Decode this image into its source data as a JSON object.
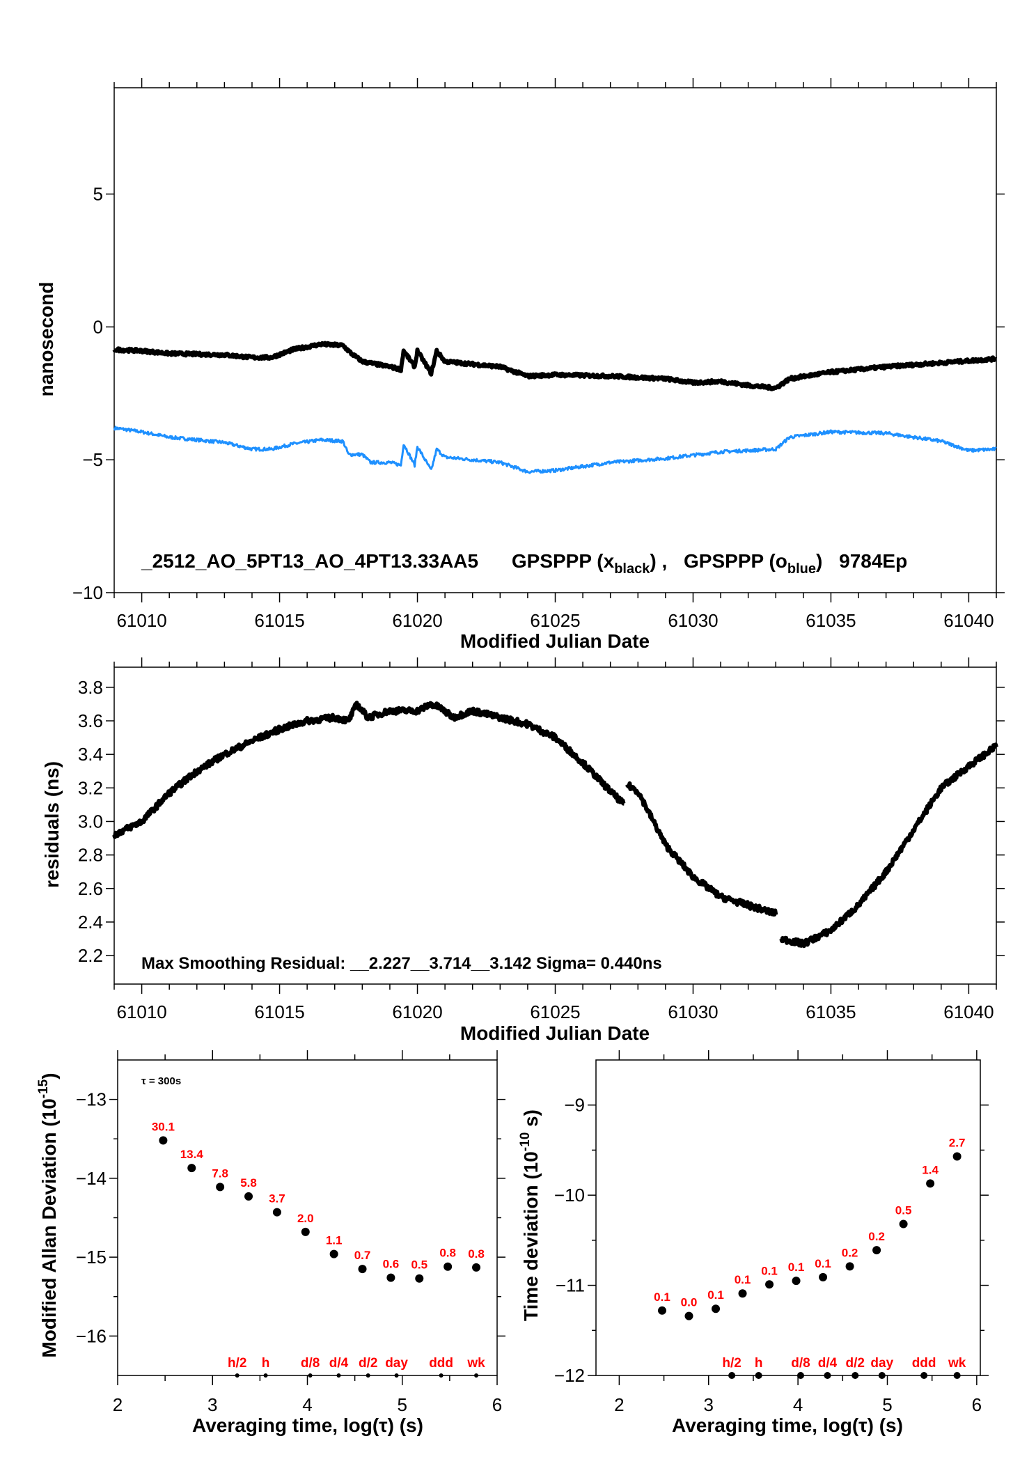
{
  "chart_data": [
    {
      "type": "line",
      "xlabel": "Modified Julian Date",
      "ylabel": "nanosecond",
      "xlim": [
        61009,
        61041
      ],
      "ylim": [
        -10,
        9
      ],
      "xticks": [
        61010,
        61015,
        61020,
        61025,
        61030,
        61035,
        61040
      ],
      "yticks": [
        5,
        0,
        -5,
        -10
      ],
      "ytick_labels": [
        "5",
        "0",
        "−5",
        "−10"
      ],
      "annotation": {
        "id": "_2512_AO_5PT13_AO_4PT13.33AA5",
        "s1_prefix": "GPSPPP (x",
        "s1_sub": "black",
        "s1_suffix": ") ,",
        "s2_prefix": "GPSPPP (o",
        "s2_sub": "blue",
        "s2_suffix": ")",
        "tag": "9784Ep"
      },
      "series": [
        {
          "color": "#1e90ff",
          "x": [
            61009,
            61010,
            61011,
            61013,
            61014,
            61014.7,
            61015.5,
            61016.5,
            61017.3,
            61017.5,
            61018,
            61018.3,
            61019,
            61019.4,
            61019.5,
            61019.9,
            61020,
            61020.5,
            61020.7,
            61021,
            61022,
            61023,
            61024,
            61025,
            61027,
            61029,
            61031,
            61033,
            61033.5,
            61035,
            61037,
            61039,
            61040,
            61041
          ],
          "y": [
            -3.8,
            -3.95,
            -4.15,
            -4.35,
            -4.6,
            -4.6,
            -4.4,
            -4.25,
            -4.3,
            -4.8,
            -4.8,
            -5.1,
            -5.1,
            -5.2,
            -4.4,
            -5.2,
            -4.5,
            -5.4,
            -4.6,
            -4.9,
            -5.0,
            -5.1,
            -5.45,
            -5.4,
            -5.1,
            -4.95,
            -4.7,
            -4.6,
            -4.15,
            -3.95,
            -4.0,
            -4.3,
            -4.65,
            -4.6
          ]
        },
        {
          "color": "#000000",
          "x": [
            61009,
            61010,
            61011,
            61013,
            61014,
            61014.7,
            61015.5,
            61016.5,
            61017.3,
            61017.6,
            61018,
            61019,
            61019.4,
            61019.5,
            61019.9,
            61020,
            61020.5,
            61020.7,
            61021,
            61022,
            61023,
            61024,
            61025,
            61027,
            61029,
            61030,
            61031,
            61032,
            61033,
            61033.5,
            61035,
            61037,
            61039,
            61041
          ],
          "y": [
            -0.85,
            -0.9,
            -1.0,
            -1.05,
            -1.15,
            -1.15,
            -0.85,
            -0.65,
            -0.7,
            -1.0,
            -1.3,
            -1.5,
            -1.6,
            -0.9,
            -1.5,
            -0.9,
            -1.75,
            -0.9,
            -1.3,
            -1.4,
            -1.5,
            -1.85,
            -1.8,
            -1.85,
            -1.95,
            -2.1,
            -2.05,
            -2.2,
            -2.3,
            -1.95,
            -1.7,
            -1.5,
            -1.35,
            -1.2
          ]
        }
      ]
    },
    {
      "type": "scatter",
      "xlabel": "Modified Julian Date",
      "ylabel": "residuals (ns)",
      "xlim": [
        61009,
        61041
      ],
      "ylim": [
        2.03,
        3.92
      ],
      "xticks": [
        61010,
        61015,
        61020,
        61025,
        61030,
        61035,
        61040
      ],
      "yticks": [
        2.2,
        2.4,
        2.6,
        2.8,
        3.0,
        3.2,
        3.4,
        3.6,
        3.8
      ],
      "ytick_labels": [
        "2.2",
        "2.4",
        "2.6",
        "2.8",
        "3.0",
        "3.2",
        "3.4",
        "3.6",
        "3.8"
      ],
      "annotation": "Max Smoothing Residual: __2.227__3.714__3.142  Sigma= 0.440ns",
      "series": [
        {
          "color": "#000000",
          "x": [
            61009,
            61010,
            61011,
            61012,
            61013,
            61014,
            61015,
            61016,
            61017,
            61017.5,
            61017.8,
            61018.2,
            61019,
            61020,
            61020.5,
            61020.8,
            61021.3,
            61022,
            61023,
            61024,
            61025,
            61026,
            61027,
            61027.5,
            null,
            61027.6,
            61028,
            61029,
            61030,
            61031,
            61032,
            61033,
            null,
            61033.2,
            61034,
            61035,
            61036,
            61037,
            61038,
            61039,
            61040,
            61041
          ],
          "y": [
            2.92,
            3.0,
            3.17,
            3.3,
            3.4,
            3.48,
            3.55,
            3.6,
            3.62,
            3.6,
            3.7,
            3.62,
            3.66,
            3.66,
            3.7,
            3.68,
            3.62,
            3.66,
            3.62,
            3.58,
            3.5,
            3.35,
            3.18,
            3.1,
            null,
            3.22,
            3.18,
            2.86,
            2.67,
            2.55,
            2.5,
            2.45,
            null,
            2.3,
            2.27,
            2.35,
            2.5,
            2.7,
            2.95,
            3.2,
            3.33,
            3.45
          ]
        }
      ]
    },
    {
      "type": "scatter",
      "xlabel": "Averaging time, log(τ) (s)",
      "ylabel": "Modified Allan Deviation (10⁻¹⁵)",
      "ylabel_main": "Modified Allan Deviation (10",
      "ylabel_sup": "-15",
      "ylabel_end": ")",
      "xlim": [
        2,
        6
      ],
      "ylim": [
        -16.5,
        -12.5
      ],
      "xticks": [
        2,
        3,
        4,
        5,
        6
      ],
      "yticks": [
        -13,
        -14,
        -15,
        -16
      ],
      "ytick_labels": [
        "−13",
        "−14",
        "−15",
        "−16"
      ],
      "note": "τ = 300s",
      "x": [
        2.48,
        2.78,
        3.08,
        3.38,
        3.68,
        3.98,
        4.28,
        4.58,
        4.88,
        5.18,
        5.48,
        5.78
      ],
      "y": [
        -13.52,
        -13.87,
        -14.11,
        -14.23,
        -14.43,
        -14.68,
        -14.96,
        -15.15,
        -15.26,
        -15.27,
        -15.12,
        -15.13
      ],
      "point_labels": [
        "30.1",
        "13.4",
        "7.8",
        "5.8",
        "3.7",
        "2.0",
        "1.1",
        "0.7",
        "0.6",
        "0.5",
        "0.8",
        "0.8"
      ],
      "markers": [
        {
          "x": 3.26,
          "label": "h/2"
        },
        {
          "x": 3.56,
          "label": "h"
        },
        {
          "x": 4.03,
          "label": "d/8"
        },
        {
          "x": 4.33,
          "label": "d/4"
        },
        {
          "x": 4.64,
          "label": "d/2"
        },
        {
          "x": 4.94,
          "label": "day"
        },
        {
          "x": 5.41,
          "label": "ddd"
        },
        {
          "x": 5.78,
          "label": "wk"
        }
      ],
      "label_color": "#ff0000"
    },
    {
      "type": "scatter",
      "xlabel": "Averaging time, log(τ) (s)",
      "ylabel": "Time deviation (10⁻¹⁰ s)",
      "ylabel_main": "Time deviation (10",
      "ylabel_sup": "-10",
      "ylabel_end": " s)",
      "xlim": [
        1.74,
        6.04
      ],
      "ylim": [
        -12,
        -8.5
      ],
      "xticks": [
        2,
        3,
        4,
        5,
        6
      ],
      "yticks": [
        -9,
        -10,
        -11,
        -12
      ],
      "ytick_labels": [
        "−9",
        "−10",
        "−11",
        "−12"
      ],
      "x": [
        2.48,
        2.78,
        3.08,
        3.38,
        3.68,
        3.98,
        4.28,
        4.58,
        4.88,
        5.18,
        5.48,
        5.78
      ],
      "y": [
        -11.28,
        -11.34,
        -11.26,
        -11.09,
        -10.99,
        -10.95,
        -10.91,
        -10.79,
        -10.61,
        -10.32,
        -9.87,
        -9.57
      ],
      "point_labels": [
        "0.1",
        "0.0",
        "0.1",
        "0.1",
        "0.1",
        "0.1",
        "0.1",
        "0.2",
        "0.2",
        "0.5",
        "1.4",
        "2.7"
      ],
      "markers": [
        {
          "x": 3.26,
          "label": "h/2"
        },
        {
          "x": 3.56,
          "label": "h"
        },
        {
          "x": 4.03,
          "label": "d/8"
        },
        {
          "x": 4.33,
          "label": "d/4"
        },
        {
          "x": 4.64,
          "label": "d/2"
        },
        {
          "x": 4.94,
          "label": "day"
        },
        {
          "x": 5.41,
          "label": "ddd"
        },
        {
          "x": 5.78,
          "label": "wk"
        }
      ],
      "label_color": "#ff0000"
    }
  ]
}
